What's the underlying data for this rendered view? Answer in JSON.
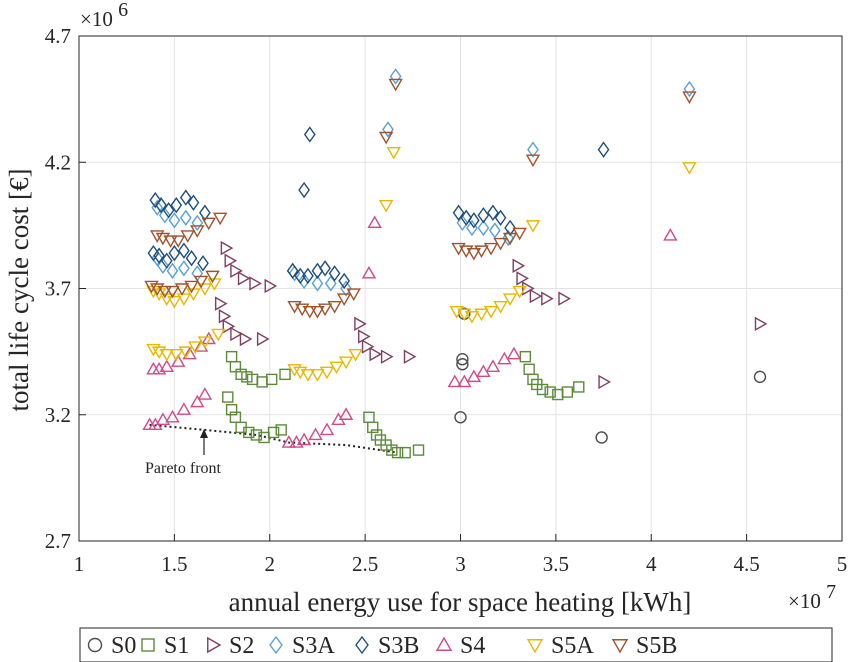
{
  "chart_data": {
    "type": "scatter",
    "xlabel": "annual energy use for space heating [kWh]",
    "ylabel": "total life cycle cost [€]",
    "x_multiplier_label": "×10",
    "x_multiplier_exponent": "7",
    "y_multiplier_label": "×10",
    "y_multiplier_exponent": "6",
    "xlim": [
      1,
      5
    ],
    "ylim": [
      2.7,
      4.7
    ],
    "xticks": [
      "1",
      "1.5",
      "2",
      "2.5",
      "3",
      "3.5",
      "4",
      "4.5",
      "5"
    ],
    "yticks": [
      "2.7",
      "3.2",
      "3.7",
      "4.2",
      "4.7"
    ],
    "grid": true,
    "legend_position": "bottom",
    "annotation": "Pareto front",
    "series": [
      {
        "name": "S0",
        "marker": "circle",
        "color": "#4d4d4d",
        "points": [
          [
            3.01,
            3.4
          ],
          [
            3.01,
            3.42
          ],
          [
            3.02,
            3.6
          ],
          [
            3.0,
            3.19
          ],
          [
            3.74,
            3.11
          ],
          [
            4.57,
            3.35
          ]
        ]
      },
      {
        "name": "S1",
        "marker": "square",
        "color": "#5e8a3c",
        "points": [
          [
            1.78,
            3.27
          ],
          [
            1.8,
            3.22
          ],
          [
            1.82,
            3.19
          ],
          [
            1.85,
            3.15
          ],
          [
            1.89,
            3.13
          ],
          [
            1.93,
            3.12
          ],
          [
            1.97,
            3.11
          ],
          [
            2.02,
            3.13
          ],
          [
            2.06,
            3.14
          ],
          [
            1.8,
            3.43
          ],
          [
            1.82,
            3.39
          ],
          [
            1.85,
            3.36
          ],
          [
            1.88,
            3.35
          ],
          [
            1.91,
            3.34
          ],
          [
            1.96,
            3.33
          ],
          [
            2.01,
            3.34
          ],
          [
            2.08,
            3.36
          ],
          [
            2.52,
            3.19
          ],
          [
            2.54,
            3.15
          ],
          [
            2.56,
            3.12
          ],
          [
            2.58,
            3.1
          ],
          [
            2.61,
            3.08
          ],
          [
            2.64,
            3.06
          ],
          [
            2.67,
            3.05
          ],
          [
            2.71,
            3.05
          ],
          [
            2.78,
            3.06
          ],
          [
            3.34,
            3.43
          ],
          [
            3.36,
            3.38
          ],
          [
            3.38,
            3.34
          ],
          [
            3.4,
            3.32
          ],
          [
            3.43,
            3.3
          ],
          [
            3.47,
            3.29
          ],
          [
            3.51,
            3.28
          ],
          [
            3.56,
            3.29
          ],
          [
            3.62,
            3.31
          ]
        ]
      },
      {
        "name": "S2",
        "marker": "tri-right",
        "color": "#7e3f62",
        "points": [
          [
            1.77,
            3.86
          ],
          [
            1.79,
            3.81
          ],
          [
            1.82,
            3.77
          ],
          [
            1.86,
            3.74
          ],
          [
            1.92,
            3.72
          ],
          [
            2.0,
            3.71
          ],
          [
            1.74,
            3.64
          ],
          [
            1.76,
            3.59
          ],
          [
            1.78,
            3.55
          ],
          [
            1.82,
            3.52
          ],
          [
            1.87,
            3.5
          ],
          [
            1.96,
            3.5
          ],
          [
            2.47,
            3.56
          ],
          [
            2.49,
            3.51
          ],
          [
            2.51,
            3.47
          ],
          [
            2.55,
            3.44
          ],
          [
            2.61,
            3.43
          ],
          [
            2.73,
            3.43
          ],
          [
            3.3,
            3.79
          ],
          [
            3.32,
            3.74
          ],
          [
            3.35,
            3.7
          ],
          [
            3.39,
            3.67
          ],
          [
            3.45,
            3.66
          ],
          [
            3.54,
            3.66
          ],
          [
            3.75,
            3.33
          ],
          [
            4.57,
            3.56
          ]
        ]
      },
      {
        "name": "S3A",
        "marker": "diamond",
        "color": "#5aa0d6",
        "points": [
          [
            1.41,
            4.02
          ],
          [
            1.45,
            3.99
          ],
          [
            1.5,
            3.97
          ],
          [
            1.56,
            3.98
          ],
          [
            1.62,
            3.96
          ],
          [
            1.41,
            3.82
          ],
          [
            1.44,
            3.79
          ],
          [
            1.49,
            3.77
          ],
          [
            1.55,
            3.78
          ],
          [
            1.62,
            3.76
          ],
          [
            2.13,
            3.76
          ],
          [
            2.18,
            3.73
          ],
          [
            2.25,
            3.72
          ],
          [
            2.32,
            3.72
          ],
          [
            2.4,
            3.7
          ],
          [
            3.01,
            3.96
          ],
          [
            3.06,
            3.94
          ],
          [
            3.12,
            3.94
          ],
          [
            3.18,
            3.93
          ],
          [
            3.25,
            3.9
          ],
          [
            2.62,
            4.33
          ],
          [
            2.66,
            4.54
          ],
          [
            3.38,
            4.25
          ],
          [
            4.2,
            4.49
          ]
        ]
      },
      {
        "name": "S3B",
        "marker": "diamond",
        "color": "#1f4e79",
        "points": [
          [
            1.4,
            4.05
          ],
          [
            1.43,
            4.03
          ],
          [
            1.47,
            4.01
          ],
          [
            1.51,
            4.03
          ],
          [
            1.56,
            4.06
          ],
          [
            1.6,
            4.04
          ],
          [
            1.66,
            4.0
          ],
          [
            1.39,
            3.84
          ],
          [
            1.42,
            3.83
          ],
          [
            1.46,
            3.81
          ],
          [
            1.5,
            3.84
          ],
          [
            1.55,
            3.85
          ],
          [
            1.59,
            3.82
          ],
          [
            1.65,
            3.8
          ],
          [
            2.12,
            3.77
          ],
          [
            2.16,
            3.75
          ],
          [
            2.2,
            3.75
          ],
          [
            2.25,
            3.77
          ],
          [
            2.29,
            3.78
          ],
          [
            2.34,
            3.76
          ],
          [
            2.39,
            3.73
          ],
          [
            2.99,
            4.0
          ],
          [
            3.03,
            3.98
          ],
          [
            3.07,
            3.97
          ],
          [
            3.12,
            3.99
          ],
          [
            3.17,
            4.0
          ],
          [
            3.21,
            3.98
          ],
          [
            3.26,
            3.94
          ],
          [
            2.18,
            4.09
          ],
          [
            2.21,
            4.31
          ],
          [
            3.75,
            4.25
          ]
        ]
      },
      {
        "name": "S4",
        "marker": "tri-up",
        "color": "#d14a8b",
        "points": [
          [
            1.37,
            3.16
          ],
          [
            1.4,
            3.16
          ],
          [
            1.44,
            3.18
          ],
          [
            1.49,
            3.19
          ],
          [
            1.55,
            3.22
          ],
          [
            1.62,
            3.25
          ],
          [
            1.66,
            3.28
          ],
          [
            1.39,
            3.38
          ],
          [
            1.42,
            3.38
          ],
          [
            1.46,
            3.39
          ],
          [
            1.52,
            3.41
          ],
          [
            1.58,
            3.44
          ],
          [
            1.64,
            3.47
          ],
          [
            1.68,
            3.5
          ],
          [
            2.1,
            3.09
          ],
          [
            2.14,
            3.09
          ],
          [
            2.18,
            3.1
          ],
          [
            2.24,
            3.12
          ],
          [
            2.3,
            3.14
          ],
          [
            2.36,
            3.18
          ],
          [
            2.4,
            3.2
          ],
          [
            2.97,
            3.33
          ],
          [
            3.02,
            3.33
          ],
          [
            3.07,
            3.35
          ],
          [
            3.12,
            3.37
          ],
          [
            3.17,
            3.39
          ],
          [
            3.23,
            3.42
          ],
          [
            3.28,
            3.44
          ],
          [
            2.52,
            3.76
          ],
          [
            2.55,
            3.96
          ],
          [
            4.1,
            3.91
          ]
        ]
      },
      {
        "name": "S5A",
        "marker": "tri-down",
        "color": "#e8b800",
        "points": [
          [
            1.39,
            3.69
          ],
          [
            1.42,
            3.68
          ],
          [
            1.46,
            3.66
          ],
          [
            1.5,
            3.65
          ],
          [
            1.55,
            3.66
          ],
          [
            1.6,
            3.68
          ],
          [
            1.66,
            3.7
          ],
          [
            1.71,
            3.72
          ],
          [
            1.39,
            3.46
          ],
          [
            1.42,
            3.45
          ],
          [
            1.46,
            3.44
          ],
          [
            1.51,
            3.44
          ],
          [
            1.56,
            3.45
          ],
          [
            1.61,
            3.47
          ],
          [
            1.66,
            3.49
          ],
          [
            1.73,
            3.52
          ],
          [
            2.13,
            3.38
          ],
          [
            2.16,
            3.37
          ],
          [
            2.2,
            3.36
          ],
          [
            2.25,
            3.36
          ],
          [
            2.3,
            3.37
          ],
          [
            2.35,
            3.39
          ],
          [
            2.4,
            3.41
          ],
          [
            2.45,
            3.44
          ],
          [
            2.98,
            3.61
          ],
          [
            3.02,
            3.6
          ],
          [
            3.06,
            3.59
          ],
          [
            3.11,
            3.6
          ],
          [
            3.16,
            3.61
          ],
          [
            3.21,
            3.63
          ],
          [
            3.26,
            3.66
          ],
          [
            3.31,
            3.69
          ],
          [
            2.61,
            4.03
          ],
          [
            2.65,
            4.24
          ],
          [
            3.38,
            3.95
          ],
          [
            4.2,
            4.18
          ]
        ]
      },
      {
        "name": "S5B",
        "marker": "tri-down",
        "color": "#a0522d",
        "points": [
          [
            1.41,
            3.91
          ],
          [
            1.44,
            3.9
          ],
          [
            1.48,
            3.89
          ],
          [
            1.52,
            3.89
          ],
          [
            1.57,
            3.91
          ],
          [
            1.62,
            3.93
          ],
          [
            1.68,
            3.96
          ],
          [
            1.74,
            3.98
          ],
          [
            1.38,
            3.71
          ],
          [
            1.41,
            3.7
          ],
          [
            1.45,
            3.69
          ],
          [
            1.49,
            3.69
          ],
          [
            1.54,
            3.7
          ],
          [
            1.59,
            3.71
          ],
          [
            1.64,
            3.73
          ],
          [
            1.7,
            3.75
          ],
          [
            2.13,
            3.63
          ],
          [
            2.17,
            3.62
          ],
          [
            2.21,
            3.61
          ],
          [
            2.25,
            3.61
          ],
          [
            2.29,
            3.62
          ],
          [
            2.34,
            3.63
          ],
          [
            2.39,
            3.66
          ],
          [
            2.44,
            3.68
          ],
          [
            2.99,
            3.86
          ],
          [
            3.03,
            3.85
          ],
          [
            3.07,
            3.84
          ],
          [
            3.11,
            3.85
          ],
          [
            3.16,
            3.86
          ],
          [
            3.21,
            3.88
          ],
          [
            3.26,
            3.9
          ],
          [
            3.31,
            3.92
          ],
          [
            2.61,
            4.3
          ],
          [
            2.66,
            4.51
          ],
          [
            3.38,
            4.21
          ],
          [
            4.2,
            4.46
          ]
        ]
      }
    ],
    "pareto_front": [
      [
        1.37,
        3.16
      ],
      [
        1.66,
        3.14
      ],
      [
        1.93,
        3.12
      ],
      [
        2.1,
        3.09
      ],
      [
        2.4,
        3.08
      ],
      [
        2.67,
        3.05
      ]
    ]
  }
}
